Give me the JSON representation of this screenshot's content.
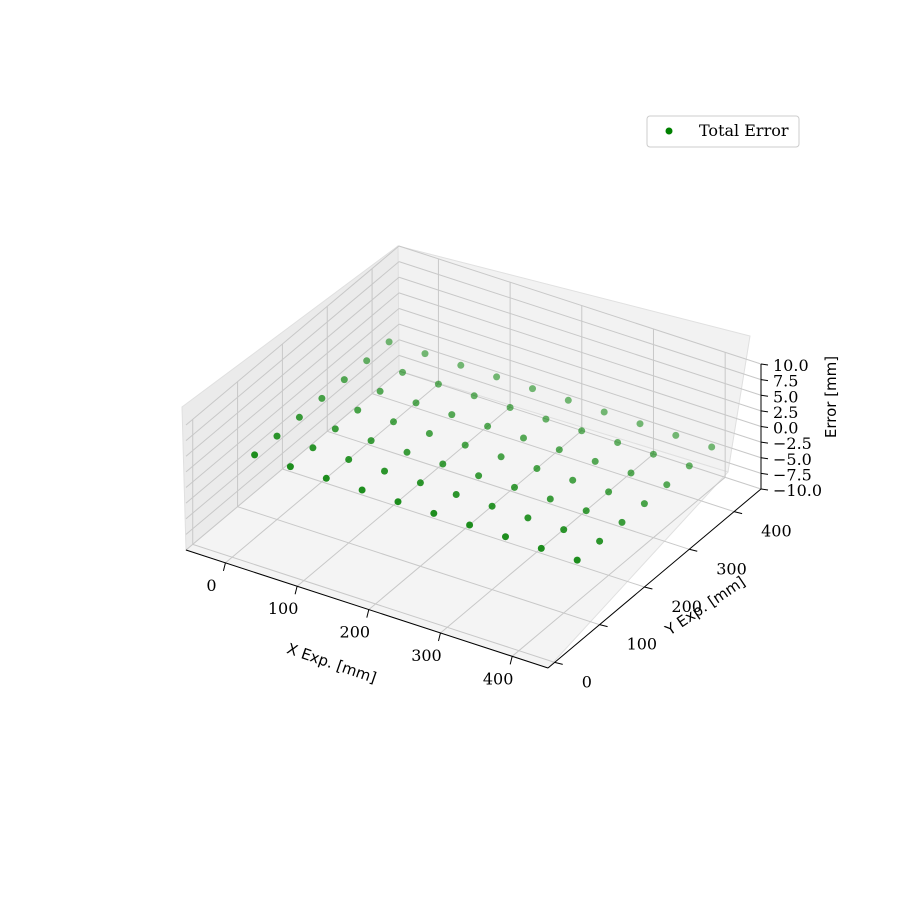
{
  "chart_data": {
    "type": "scatter",
    "projection": "3d",
    "series": [
      {
        "name": "Total Error",
        "color": "#008000",
        "points": [
          [
            -25,
            390,
            0
          ],
          [
            25,
            390,
            0
          ],
          [
            75,
            390,
            0
          ],
          [
            125,
            390,
            0
          ],
          [
            175,
            390,
            0
          ],
          [
            225,
            390,
            0
          ],
          [
            275,
            390,
            0
          ],
          [
            325,
            390,
            0
          ],
          [
            375,
            390,
            0
          ],
          [
            425,
            390,
            0
          ],
          [
            -25,
            340,
            0
          ],
          [
            25,
            340,
            0
          ],
          [
            75,
            340,
            0
          ],
          [
            125,
            340,
            0
          ],
          [
            175,
            340,
            0
          ],
          [
            225,
            340,
            0
          ],
          [
            275,
            340,
            0
          ],
          [
            325,
            340,
            0
          ],
          [
            375,
            340,
            0
          ],
          [
            425,
            340,
            0
          ],
          [
            -25,
            290,
            0
          ],
          [
            25,
            290,
            0
          ],
          [
            75,
            290,
            0
          ],
          [
            125,
            290,
            0
          ],
          [
            175,
            290,
            0
          ],
          [
            225,
            290,
            0
          ],
          [
            275,
            290,
            0
          ],
          [
            325,
            290,
            0
          ],
          [
            375,
            290,
            0
          ],
          [
            425,
            290,
            0
          ],
          [
            -25,
            240,
            0
          ],
          [
            25,
            240,
            0
          ],
          [
            75,
            240,
            0
          ],
          [
            125,
            240,
            0
          ],
          [
            175,
            240,
            0
          ],
          [
            225,
            240,
            0
          ],
          [
            275,
            240,
            0
          ],
          [
            325,
            240,
            0
          ],
          [
            375,
            240,
            0
          ],
          [
            425,
            240,
            0
          ],
          [
            -25,
            190,
            0
          ],
          [
            25,
            190,
            0
          ],
          [
            75,
            190,
            0
          ],
          [
            125,
            190,
            0
          ],
          [
            175,
            190,
            0
          ],
          [
            225,
            190,
            0
          ],
          [
            275,
            190,
            0
          ],
          [
            325,
            190,
            0
          ],
          [
            375,
            190,
            0
          ],
          [
            425,
            190,
            0
          ],
          [
            -25,
            140,
            0
          ],
          [
            25,
            140,
            0
          ],
          [
            75,
            140,
            0
          ],
          [
            125,
            140,
            0
          ],
          [
            175,
            140,
            0
          ],
          [
            225,
            140,
            0
          ],
          [
            275,
            140,
            0
          ],
          [
            325,
            140,
            0
          ],
          [
            375,
            140,
            0
          ],
          [
            425,
            140,
            0
          ],
          [
            -25,
            90,
            0
          ],
          [
            25,
            90,
            0
          ],
          [
            75,
            90,
            0
          ],
          [
            125,
            90,
            0
          ],
          [
            175,
            90,
            0
          ],
          [
            225,
            90,
            0
          ],
          [
            275,
            90,
            0
          ],
          [
            325,
            90,
            0
          ],
          [
            375,
            90,
            0
          ],
          [
            425,
            90,
            0
          ]
        ]
      }
    ],
    "xlabel": "X Exp. [mm]",
    "ylabel": "Y Exp. [mm]",
    "zlabel": "Error [mm]",
    "xlim": [
      -55,
      450
    ],
    "ylim": [
      -15,
      460
    ],
    "zlim": [
      -10,
      10
    ],
    "xticks": [
      "0",
      "100",
      "200",
      "300",
      "400"
    ],
    "yticks": [
      "0",
      "100",
      "200",
      "300",
      "400"
    ],
    "zticks": [
      "−10.0",
      "−7.5",
      "−5.0",
      "−2.5",
      "0.0",
      "2.5",
      "5.0",
      "7.5",
      "10.0"
    ],
    "grid": true,
    "legend_position": "top-right"
  }
}
